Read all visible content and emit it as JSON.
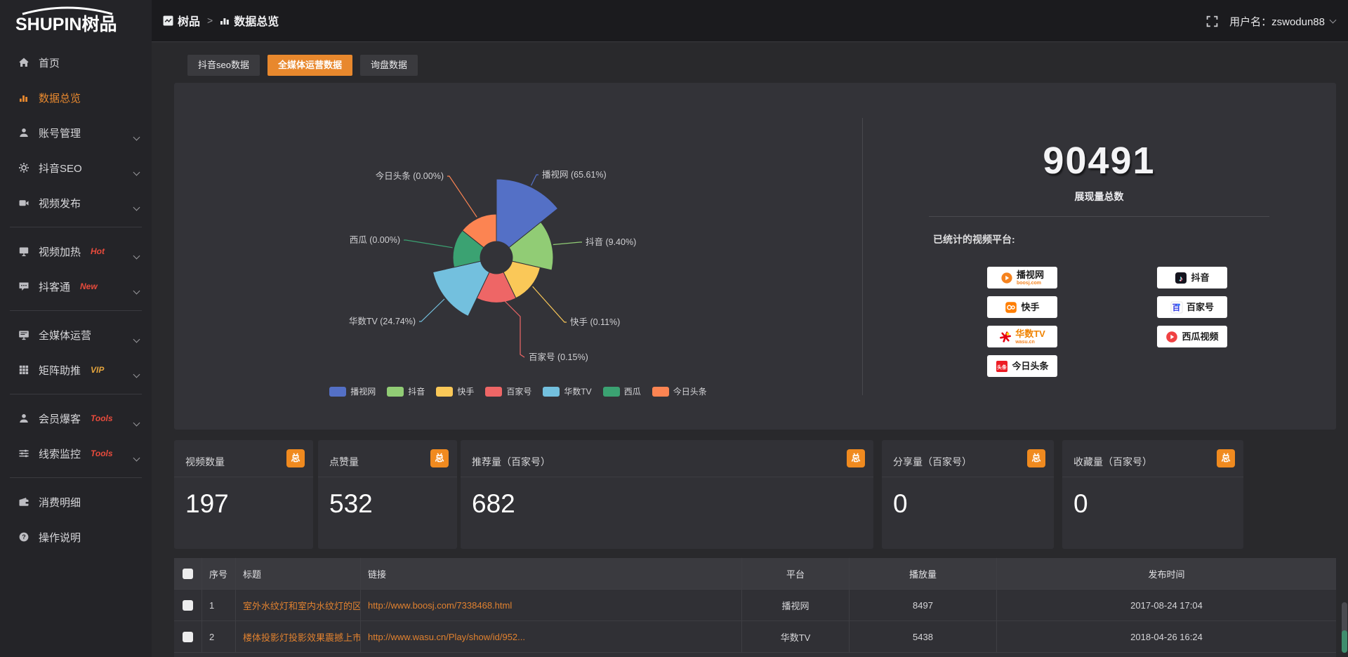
{
  "theme": {
    "accent": "#e8882d",
    "badge_orange": "#f08a1f",
    "link_orange": "#e0812f",
    "hot_red": "#e84b3c",
    "vip_gold": "#e2a33d"
  },
  "topbar": {
    "logo_text": "SHUPIN树品",
    "breadcrumb": {
      "root": "树品",
      "separator": ">",
      "current": "数据总览"
    },
    "username": "用户名：zswodun88"
  },
  "sidebar": {
    "items": [
      {
        "icon": "home",
        "label": "首页"
      },
      {
        "icon": "bars",
        "label": "数据总览",
        "active": true
      },
      {
        "icon": "user",
        "label": "账号管理",
        "chevron": true
      },
      {
        "icon": "gear",
        "label": "抖音SEO",
        "chevron": true
      },
      {
        "icon": "video",
        "label": "视频发布",
        "chevron": true,
        "divider_after": true
      },
      {
        "icon": "screen",
        "label": "视频加热",
        "badge": "Hot",
        "badge_color": "#e84b3c",
        "chevron": true
      },
      {
        "icon": "chat",
        "label": "抖客通",
        "badge": "New",
        "badge_color": "#e84b3c",
        "chevron": true,
        "divider_after": true
      },
      {
        "icon": "monitor",
        "label": "全媒体运营",
        "chevron": true
      },
      {
        "icon": "grid",
        "label": "矩阵助推",
        "badge": "VIP",
        "badge_color": "#e2a33d",
        "chevron": true,
        "divider_after": true
      },
      {
        "icon": "user",
        "label": "会员爆客",
        "badge": "Tools",
        "badge_color": "#e84b3c",
        "chevron": true
      },
      {
        "icon": "sliders",
        "label": "线索监控",
        "badge": "Tools",
        "badge_color": "#e84b3c",
        "chevron": true,
        "divider_after": true
      },
      {
        "icon": "wallet",
        "label": "消费明细"
      },
      {
        "icon": "help",
        "label": "操作说明"
      }
    ]
  },
  "tabs": [
    {
      "label": "抖音seo数据",
      "active": false
    },
    {
      "label": "全媒体运营数据",
      "active": true
    },
    {
      "label": "询盘数据",
      "active": false
    }
  ],
  "chart_data": {
    "type": "pie",
    "style": "nightingale-rose",
    "unit": "percent",
    "labels": [
      "播视网",
      "抖音",
      "快手",
      "百家号",
      "华数TV",
      "西瓜",
      "今日头条"
    ],
    "values": [
      65.61,
      9.4,
      0.11,
      0.15,
      24.74,
      0.0,
      0.0
    ],
    "display_labels": [
      "播视网 (65.61%)",
      "抖音 (9.40%)",
      "快手 (0.11%)",
      "百家号 (0.15%)",
      "华数TV (24.74%)",
      "西瓜 (0.00%)",
      "今日头条 (0.00%)"
    ],
    "colors": [
      "#5470c6",
      "#91cc75",
      "#fac858",
      "#ee6666",
      "#73c0de",
      "#3ba272",
      "#fc8452"
    ],
    "legend_position": "bottom"
  },
  "summary": {
    "total_value": "90491",
    "total_label": "展现量总数",
    "platforms_title": "已统计的视频平台:",
    "platforms": [
      {
        "icon": "boosj",
        "name": "播视网",
        "sub": "boosj.com",
        "col": 1
      },
      {
        "icon": "kuaishou",
        "name": "快手",
        "col": 1
      },
      {
        "icon": "wasu",
        "name": "华数TV",
        "sub": "wasu.cn",
        "orange": true,
        "col": 1
      },
      {
        "icon": "toutiao",
        "name": "今日头条",
        "col": 1
      },
      {
        "icon": "douyin",
        "name": "抖音",
        "col": 2
      },
      {
        "icon": "baijiahao",
        "name": "百家号",
        "col": 2
      },
      {
        "icon": "xigua",
        "name": "西瓜视频",
        "col": 2
      }
    ]
  },
  "cards": [
    {
      "title": "视频数量",
      "badge": "总",
      "value": "197"
    },
    {
      "title": "点赞量",
      "badge": "总",
      "value": "532"
    },
    {
      "title": "推荐量（百家号）",
      "badge": "总",
      "value": "682"
    },
    {
      "title": "分享量（百家号）",
      "badge": "总",
      "value": "0"
    },
    {
      "title": "收藏量（百家号）",
      "badge": "总",
      "value": "0"
    }
  ],
  "table": {
    "headers": [
      "序号",
      "标题",
      "链接",
      "平台",
      "播放量",
      "发布时间"
    ],
    "rows": [
      {
        "index": "1",
        "title": "室外水纹灯和室内水纹灯的区别和简介",
        "link": "http://www.boosj.com/7338468.html",
        "platform": "播视网",
        "plays": "8497",
        "time": "2017-08-24 17:04"
      },
      {
        "index": "2",
        "title": "楼体投影灯投影效果震撼上市",
        "link": "http://www.wasu.cn/Play/show/id/952...",
        "platform": "华数TV",
        "plays": "5438",
        "time": "2018-04-26 16:24"
      }
    ]
  }
}
